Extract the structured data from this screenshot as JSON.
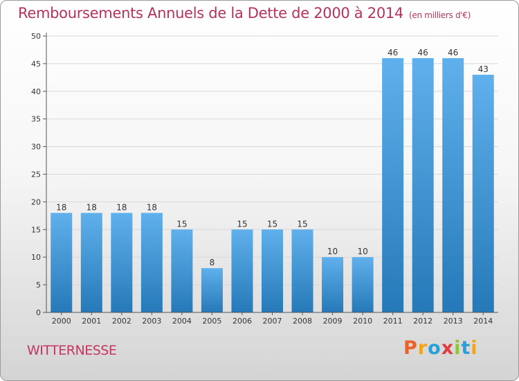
{
  "title": "Remboursements Annuels de la Dette de 2000 à 2014",
  "unit_label": "(en milliers d'€)",
  "commune": "WITTERNESSE",
  "logo": "Proxiti",
  "logo_colors": [
    "#e8622a",
    "#f2a31a",
    "#2aa0d8",
    "#e23c3c",
    "#8bc43f",
    "#2aa0d8",
    "#f2a31a"
  ],
  "bar_color_top": "#5fb0ec",
  "bar_color_bottom": "#2679b8",
  "chart_data": {
    "type": "bar",
    "title": "Remboursements Annuels de la Dette de 2000 à 2014",
    "xlabel": "",
    "ylabel": "",
    "ylim": [
      0,
      50
    ],
    "yticks": [
      0,
      5,
      10,
      15,
      20,
      25,
      30,
      35,
      40,
      45,
      50
    ],
    "categories": [
      "2000",
      "2001",
      "2002",
      "2003",
      "2004",
      "2005",
      "2006",
      "2007",
      "2008",
      "2009",
      "2010",
      "2011",
      "2012",
      "2013",
      "2014"
    ],
    "values": [
      18,
      18,
      18,
      18,
      15,
      8,
      15,
      15,
      15,
      10,
      10,
      46,
      46,
      46,
      43
    ]
  }
}
